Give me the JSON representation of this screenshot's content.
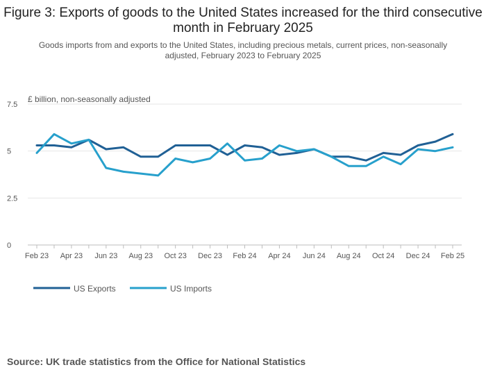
{
  "chart_data": {
    "type": "line",
    "title": "Figure 3: Exports of goods to the United States increased for the third consecutive month in February 2025",
    "subtitle": "Goods imports from and exports to the United States, including precious metals, current prices, non-seasonally adjusted, February 2023 to February 2025",
    "ylabel": "£ billion, non-seasonally adjusted",
    "xlabel": "",
    "ylim": [
      0,
      7.5
    ],
    "yticks": [
      0,
      2.5,
      5,
      7.5
    ],
    "ytick_labels": [
      "0",
      "2.5",
      "5",
      "7.5"
    ],
    "x": [
      "Feb 23",
      "Mar 23",
      "Apr 23",
      "May 23",
      "Jun 23",
      "Jul 23",
      "Aug 23",
      "Sep 23",
      "Oct 23",
      "Nov 23",
      "Dec 23",
      "Jan 24",
      "Feb 24",
      "Mar 24",
      "Apr 24",
      "May 24",
      "Jun 24",
      "Jul 24",
      "Aug 24",
      "Sep 24",
      "Oct 24",
      "Nov 24",
      "Dec 24",
      "Jan 25",
      "Feb 25"
    ],
    "xtick_labels": [
      "Feb 23",
      "Apr 23",
      "Jun 23",
      "Aug 23",
      "Oct 23",
      "Dec 23",
      "Feb 24",
      "Apr 24",
      "Jun 24",
      "Aug 24",
      "Oct 24",
      "Dec 24",
      "Feb 25"
    ],
    "grid": true,
    "legend_position": "bottom-left",
    "series": [
      {
        "name": "US Exports",
        "color": "#206095",
        "values": [
          5.3,
          5.3,
          5.2,
          5.6,
          5.1,
          5.2,
          4.7,
          4.7,
          5.3,
          5.3,
          5.3,
          4.8,
          5.3,
          5.2,
          4.8,
          4.9,
          5.1,
          4.7,
          4.7,
          4.5,
          4.9,
          4.8,
          5.3,
          5.5,
          5.9
        ]
      },
      {
        "name": "US Imports",
        "color": "#27a0cc",
        "values": [
          4.9,
          5.9,
          5.4,
          5.6,
          4.1,
          3.9,
          3.8,
          3.7,
          4.6,
          4.4,
          4.6,
          5.4,
          4.5,
          4.6,
          5.3,
          5.0,
          5.1,
          4.7,
          4.2,
          4.2,
          4.7,
          4.3,
          5.1,
          5.0,
          5.2
        ]
      }
    ]
  },
  "source": "Source: UK trade statistics from the Office for National Statistics"
}
